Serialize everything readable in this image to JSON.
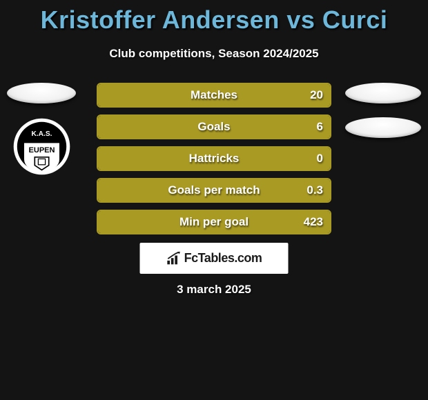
{
  "title": "Kristoffer Andersen vs Curci",
  "subtitle": "Club competitions, Season 2024/2025",
  "date": "3 march 2025",
  "brand": "FcTables.com",
  "colors": {
    "title": "#6db8da",
    "text": "#ffffff",
    "background": "#141414",
    "bar_fill": "#a99a23",
    "bar_border": "#a99a23",
    "bar_track": "#141414",
    "brand_bg": "#ffffff",
    "brand_text": "#1a1a1a"
  },
  "stats": [
    {
      "label": "Matches",
      "left_value": "20",
      "left_fill_pct": 100,
      "right_fill_pct": 0
    },
    {
      "label": "Goals",
      "left_value": "6",
      "left_fill_pct": 100,
      "right_fill_pct": 0
    },
    {
      "label": "Hattricks",
      "left_value": "0",
      "left_fill_pct": 100,
      "right_fill_pct": 0
    },
    {
      "label": "Goals per match",
      "left_value": "0.3",
      "left_fill_pct": 100,
      "right_fill_pct": 0
    },
    {
      "label": "Min per goal",
      "left_value": "423",
      "left_fill_pct": 100,
      "right_fill_pct": 0
    }
  ],
  "left_player": {
    "images_count": 1,
    "club_badge": "KAS EUPEN"
  },
  "right_player": {
    "images_count": 2
  }
}
